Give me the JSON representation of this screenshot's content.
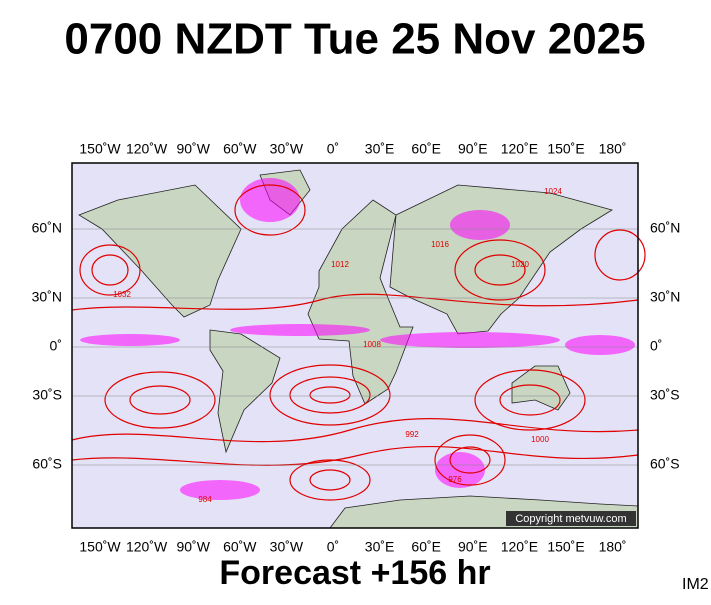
{
  "title": "0700 NZDT Tue 25 Nov 2025",
  "longitude_labels": [
    "150˚W",
    "120˚W",
    "90˚W",
    "60˚W",
    "30˚W",
    "0˚",
    "30˚E",
    "60˚E",
    "90˚E",
    "120˚E",
    "150˚E",
    "180˚"
  ],
  "latitude_labels": [
    "60˚N",
    "30˚N",
    "0˚",
    "30˚S",
    "60˚S"
  ],
  "isobar_labels": [
    "1016",
    "1024",
    "1032",
    "1008",
    "992",
    "1000",
    "984",
    "976",
    "1020",
    "1012"
  ],
  "copyright": "Copyright metvuw.com",
  "footer": "Forecast +156 hr",
  "image_id": "IM2"
}
